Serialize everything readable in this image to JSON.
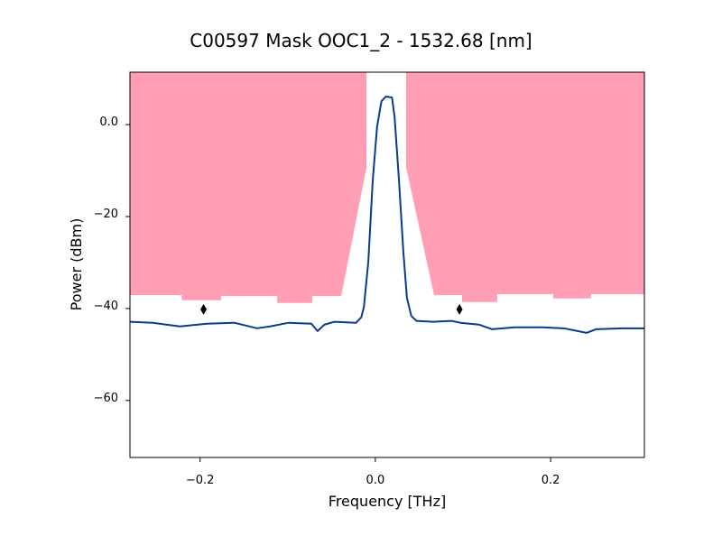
{
  "chart_data": {
    "type": "line",
    "title": "C00597 Mask OOC1_2 - 1532.68 [nm]",
    "xlabel": "Frequency [THz]",
    "ylabel": "Power (dBm)",
    "xlim": [
      -0.28,
      0.307
    ],
    "ylim": [
      -72.4,
      11.4
    ],
    "xticks": [
      {
        "value": -0.2,
        "label": "−0.2"
      },
      {
        "value": 0.0,
        "label": "0.0"
      },
      {
        "value": 0.2,
        "label": "0.2"
      }
    ],
    "yticks": [
      {
        "value": 0,
        "label": "0.0"
      },
      {
        "value": -20,
        "label": "−20"
      },
      {
        "value": -40,
        "label": "−40"
      },
      {
        "value": -60,
        "label": "−60"
      }
    ],
    "grid": false,
    "colors": {
      "line": "#0b3a8f",
      "mask": "#ff9eb4",
      "marker": "#000000"
    },
    "series": [
      {
        "x": [
          -0.28,
          -0.254,
          -0.223,
          -0.192,
          -0.161,
          -0.135,
          -0.12,
          -0.099,
          -0.073,
          -0.066,
          -0.058,
          -0.047,
          -0.022,
          -0.016,
          -0.013,
          -0.008,
          -0.003,
          0.002,
          0.007,
          0.012,
          0.019,
          0.022,
          0.027,
          0.032,
          0.036,
          0.041,
          0.047,
          0.066,
          0.087,
          0.097,
          0.118,
          0.133,
          0.159,
          0.19,
          0.215,
          0.241,
          0.252,
          0.282,
          0.307
        ],
        "y": [
          -42.9,
          -43.1,
          -43.9,
          -43.3,
          -43.1,
          -44.3,
          -43.9,
          -43.1,
          -43.3,
          -44.9,
          -43.5,
          -42.9,
          -43.1,
          -41.9,
          -39.6,
          -29.8,
          -12.2,
          -0.4,
          5.1,
          6.1,
          5.9,
          1.6,
          -12.2,
          -27.8,
          -37.6,
          -41.6,
          -42.7,
          -42.9,
          -42.7,
          -43.1,
          -43.5,
          -44.5,
          -44.1,
          -44.1,
          -44.3,
          -45.3,
          -44.5,
          -44.3,
          -44.3
        ]
      }
    ],
    "mask_regions": [
      {
        "x": [
          -0.28,
          -0.28,
          -0.221,
          -0.221,
          -0.176,
          -0.176,
          -0.112,
          -0.112,
          -0.072,
          -0.072,
          -0.039,
          -0.01,
          -0.01
        ],
        "y": [
          11.4,
          -37.1,
          -37.1,
          -38.2,
          -38.2,
          -37.3,
          -37.3,
          -38.8,
          -38.8,
          -37.3,
          -37.3,
          -9.2,
          11.4
        ]
      },
      {
        "x": [
          0.035,
          0.035,
          0.067,
          0.099,
          0.099,
          0.139,
          0.139,
          0.203,
          0.203,
          0.246,
          0.246,
          0.307,
          0.307
        ],
        "y": [
          11.4,
          -9.2,
          -37.1,
          -37.1,
          -38.6,
          -38.6,
          -36.9,
          -36.9,
          -37.8,
          -37.8,
          -36.9,
          -36.9,
          11.4
        ]
      }
    ],
    "markers": [
      {
        "x": -0.196,
        "y": -40.2
      },
      {
        "x": 0.096,
        "y": -40.2
      }
    ]
  }
}
